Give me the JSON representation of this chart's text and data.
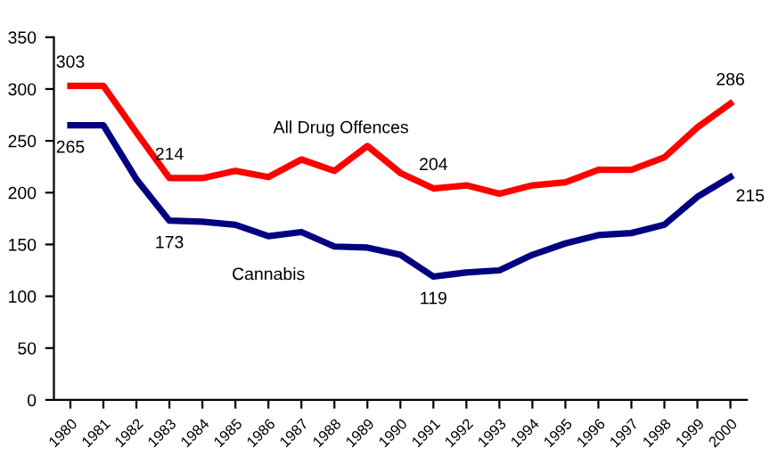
{
  "chart_data": {
    "type": "line",
    "categories": [
      "1980",
      "1981",
      "1982",
      "1983",
      "1984",
      "1985",
      "1986",
      "1987",
      "1988",
      "1989",
      "1990",
      "1991",
      "1992",
      "1993",
      "1994",
      "1995",
      "1996",
      "1997",
      "1998",
      "1999",
      "2000"
    ],
    "series": [
      {
        "name": "All Drug Offences",
        "color": "#ff0000",
        "values": [
          303,
          303,
          258,
          214,
          214,
          221,
          215,
          232,
          221,
          245,
          219,
          204,
          207,
          199,
          207,
          210,
          222,
          222,
          234,
          263,
          286
        ],
        "value_labels": [
          "303",
          null,
          null,
          "214",
          null,
          null,
          null,
          null,
          null,
          null,
          null,
          "204",
          null,
          null,
          null,
          null,
          null,
          null,
          null,
          null,
          "286"
        ]
      },
      {
        "name": "Cannabis",
        "color": "#000080",
        "values": [
          265,
          265,
          213,
          173,
          172,
          169,
          158,
          162,
          148,
          147,
          140,
          119,
          123,
          125,
          140,
          151,
          159,
          161,
          169,
          196,
          215
        ],
        "value_labels": [
          "265",
          null,
          null,
          "173",
          null,
          null,
          null,
          null,
          null,
          null,
          null,
          "119",
          null,
          null,
          null,
          null,
          null,
          null,
          null,
          null,
          "215"
        ]
      }
    ],
    "ylim": [
      0,
      350
    ],
    "yticks": [
      0,
      50,
      100,
      150,
      200,
      250,
      300,
      350
    ],
    "grid": false,
    "legend": false,
    "marker": "none",
    "line_style": "solid"
  }
}
